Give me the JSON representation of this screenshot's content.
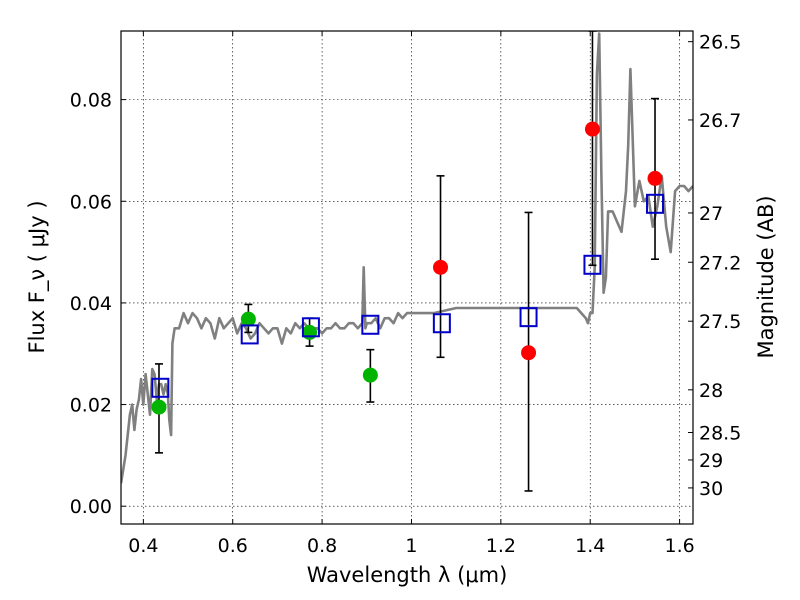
{
  "chart_data": {
    "type": "scatter",
    "xlabel": "Wavelength  λ (μm)",
    "ylabel": "Flux  F_ν  ( μJy )",
    "ylabel_right": "Magnitude (AB)",
    "xlim": [
      0.35,
      1.63
    ],
    "ylim": [
      -0.0035,
      0.0935
    ],
    "grid": true,
    "x_ticks": [
      0.4,
      0.6,
      0.8,
      1.0,
      1.2,
      1.4,
      1.6
    ],
    "x_tick_labels": [
      "0.4",
      "0.6",
      "0.8",
      "1",
      "1.2",
      "1.4",
      "1.6"
    ],
    "y_ticks": [
      0.0,
      0.02,
      0.04,
      0.06,
      0.08
    ],
    "y_tick_labels": [
      "0.00",
      "0.02",
      "0.04",
      "0.06",
      "0.08"
    ],
    "right_ticks": [
      {
        "label": "26.5",
        "flux": 0.0914
      },
      {
        "label": "26.7",
        "flux": 0.076
      },
      {
        "label": "27",
        "flux": 0.0577
      },
      {
        "label": "27.2",
        "flux": 0.048
      },
      {
        "label": "27.5",
        "flux": 0.0364
      },
      {
        "label": "28",
        "flux": 0.0229
      },
      {
        "label": "28.5",
        "flux": 0.0145
      },
      {
        "label": "29",
        "flux": 0.0091
      },
      {
        "label": "30",
        "flux": 0.0036
      }
    ],
    "series": [
      {
        "kind": "line",
        "color": "#808080",
        "x": [
          0.35,
          0.36,
          0.37,
          0.375,
          0.38,
          0.385,
          0.39,
          0.395,
          0.4,
          0.405,
          0.41,
          0.415,
          0.42,
          0.425,
          0.43,
          0.435,
          0.44,
          0.445,
          0.45,
          0.455,
          0.458,
          0.462,
          0.465,
          0.47,
          0.48,
          0.49,
          0.5,
          0.51,
          0.52,
          0.53,
          0.54,
          0.55,
          0.56,
          0.57,
          0.58,
          0.59,
          0.6,
          0.61,
          0.62,
          0.63,
          0.64,
          0.65,
          0.66,
          0.67,
          0.68,
          0.69,
          0.7,
          0.71,
          0.72,
          0.73,
          0.74,
          0.75,
          0.76,
          0.77,
          0.78,
          0.79,
          0.8,
          0.81,
          0.82,
          0.83,
          0.84,
          0.85,
          0.86,
          0.87,
          0.88,
          0.89,
          0.893,
          0.897,
          0.9,
          0.91,
          0.92,
          0.93,
          0.94,
          0.95,
          0.96,
          0.97,
          0.98,
          0.99,
          1.0,
          1.05,
          1.1,
          1.15,
          1.2,
          1.25,
          1.3,
          1.35,
          1.37,
          1.38,
          1.39,
          1.395,
          1.4,
          1.405,
          1.41,
          1.415,
          1.42,
          1.425,
          1.43,
          1.435,
          1.44,
          1.45,
          1.46,
          1.47,
          1.48,
          1.485,
          1.49,
          1.5,
          1.51,
          1.52,
          1.53,
          1.54,
          1.55,
          1.56,
          1.57,
          1.58,
          1.59,
          1.6,
          1.61,
          1.62,
          1.63
        ],
        "y": [
          0.0045,
          0.01,
          0.018,
          0.02,
          0.015,
          0.019,
          0.021,
          0.025,
          0.02,
          0.026,
          0.022,
          0.018,
          0.027,
          0.026,
          0.021,
          0.024,
          0.024,
          0.022,
          0.024,
          0.022,
          0.017,
          0.014,
          0.032,
          0.035,
          0.035,
          0.038,
          0.036,
          0.038,
          0.037,
          0.035,
          0.037,
          0.036,
          0.033,
          0.037,
          0.035,
          0.036,
          0.037,
          0.034,
          0.036,
          0.035,
          0.033,
          0.034,
          0.036,
          0.035,
          0.034,
          0.035,
          0.035,
          0.032,
          0.035,
          0.034,
          0.036,
          0.035,
          0.036,
          0.035,
          0.035,
          0.035,
          0.034,
          0.035,
          0.035,
          0.036,
          0.035,
          0.035,
          0.036,
          0.036,
          0.035,
          0.036,
          0.047,
          0.035,
          0.036,
          0.036,
          0.037,
          0.035,
          0.037,
          0.037,
          0.036,
          0.038,
          0.037,
          0.038,
          0.038,
          0.038,
          0.039,
          0.039,
          0.039,
          0.039,
          0.039,
          0.039,
          0.039,
          0.038,
          0.037,
          0.036,
          0.038,
          0.038,
          0.047,
          0.085,
          0.093,
          0.065,
          0.042,
          0.045,
          0.058,
          0.058,
          0.056,
          0.054,
          0.062,
          0.071,
          0.086,
          0.059,
          0.064,
          0.06,
          0.061,
          0.055,
          0.059,
          0.065,
          0.055,
          0.05,
          0.062,
          0.063,
          0.063,
          0.062,
          0.063
        ]
      },
      {
        "kind": "points",
        "marker": "circle",
        "color": "#00b400",
        "points": [
          {
            "x": 0.435,
            "y": 0.0195,
            "lo": 0.0105,
            "hi": 0.028
          },
          {
            "x": 0.635,
            "y": 0.0368,
            "lo": 0.0342,
            "hi": 0.0397
          },
          {
            "x": 0.772,
            "y": 0.0342,
            "lo": 0.0315,
            "hi": 0.037
          },
          {
            "x": 0.908,
            "y": 0.0258,
            "lo": 0.0205,
            "hi": 0.0308
          }
        ]
      },
      {
        "kind": "points",
        "marker": "circle",
        "color": "#ff0000",
        "points": [
          {
            "x": 1.065,
            "y": 0.047,
            "lo": 0.0293,
            "hi": 0.065
          },
          {
            "x": 1.262,
            "y": 0.0302,
            "lo": 0.003,
            "hi": 0.0578
          },
          {
            "x": 1.405,
            "y": 0.0742,
            "lo": 0.0474,
            "hi": 0.0935
          },
          {
            "x": 1.545,
            "y": 0.0645,
            "lo": 0.0486,
            "hi": 0.0802
          }
        ]
      },
      {
        "kind": "points",
        "marker": "square",
        "color": "#0000c8",
        "points": [
          {
            "x": 0.438,
            "y": 0.0233
          },
          {
            "x": 0.638,
            "y": 0.0338
          },
          {
            "x": 0.775,
            "y": 0.0352
          },
          {
            "x": 0.908,
            "y": 0.0357
          },
          {
            "x": 1.068,
            "y": 0.036
          },
          {
            "x": 1.262,
            "y": 0.0372
          },
          {
            "x": 1.405,
            "y": 0.0475
          },
          {
            "x": 1.545,
            "y": 0.0595
          }
        ]
      }
    ]
  }
}
